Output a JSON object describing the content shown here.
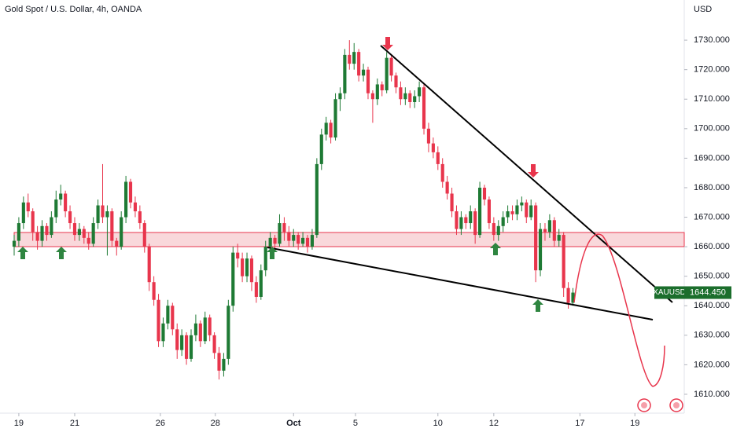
{
  "chart_data": {
    "type": "candlestick",
    "title": "Gold Spot / U.S. Dollar, 4h, OANDA",
    "y_axis_label": "USD",
    "up_color": "#1e7a34",
    "down_color": "#e8354c",
    "ylim": [
      1605.2,
      1743.6
    ],
    "yticks": [
      {
        "value": 1610,
        "label": "1610.000"
      },
      {
        "value": 1620,
        "label": "1620.000"
      },
      {
        "value": 1630,
        "label": "1630.000"
      },
      {
        "value": 1640,
        "label": "1640.000"
      },
      {
        "value": 1650,
        "label": "1650.000"
      },
      {
        "value": 1660,
        "label": "1660.000"
      },
      {
        "value": 1670,
        "label": "1670.000"
      },
      {
        "value": 1680,
        "label": "1680.000"
      },
      {
        "value": 1690,
        "label": "1690.000"
      },
      {
        "value": 1700,
        "label": "1700.000"
      },
      {
        "value": 1710,
        "label": "1710.000"
      },
      {
        "value": 1720,
        "label": "1720.000"
      },
      {
        "value": 1730,
        "label": "1730.000"
      }
    ],
    "xlim": [
      -3.04,
      143.9
    ],
    "xticks": [
      {
        "value": 1,
        "label": "19"
      },
      {
        "value": 13,
        "label": "21"
      },
      {
        "value": 31.4,
        "label": "26"
      },
      {
        "value": 43.2,
        "label": "28"
      },
      {
        "value": 60,
        "label": "Oct"
      },
      {
        "value": 73.3,
        "label": "5"
      },
      {
        "value": 91,
        "label": "10"
      },
      {
        "value": 103,
        "label": "12"
      },
      {
        "value": 121.5,
        "label": "17"
      },
      {
        "value": 133.3,
        "label": "19"
      }
    ],
    "price_label": {
      "name": "XAUUSD",
      "value": 1644.45,
      "label": "1644.450"
    },
    "candles": [
      [
        1660,
        1664,
        1657,
        1662
      ],
      [
        1662,
        1670,
        1660,
        1668
      ],
      [
        1668,
        1677,
        1666,
        1675
      ],
      [
        1675,
        1678,
        1670,
        1672
      ],
      [
        1672,
        1673,
        1662,
        1665
      ],
      [
        1665,
        1667,
        1659,
        1662
      ],
      [
        1662,
        1669,
        1660,
        1667
      ],
      [
        1667,
        1668,
        1662,
        1664
      ],
      [
        1664,
        1672,
        1663,
        1670
      ],
      [
        1670,
        1679,
        1668,
        1676
      ],
      [
        1676,
        1681,
        1674,
        1678
      ],
      [
        1678,
        1679,
        1670,
        1672
      ],
      [
        1672,
        1674,
        1666,
        1668
      ],
      [
        1668,
        1670,
        1662,
        1664
      ],
      [
        1664,
        1668,
        1662,
        1666
      ],
      [
        1666,
        1667,
        1661,
        1663
      ],
      [
        1663,
        1665,
        1659,
        1661
      ],
      [
        1661,
        1670,
        1660,
        1668
      ],
      [
        1668,
        1676,
        1666,
        1674
      ],
      [
        1674,
        1688,
        1668,
        1670
      ],
      [
        1670,
        1674,
        1657,
        1672
      ],
      [
        1672,
        1673,
        1660,
        1662
      ],
      [
        1662,
        1663,
        1657,
        1660
      ],
      [
        1660,
        1672,
        1659,
        1670
      ],
      [
        1670,
        1684,
        1668,
        1682
      ],
      [
        1682,
        1683,
        1673,
        1675
      ],
      [
        1675,
        1677,
        1670,
        1672
      ],
      [
        1672,
        1674,
        1666,
        1668
      ],
      [
        1668,
        1669,
        1658,
        1660
      ],
      [
        1660,
        1661,
        1645,
        1648
      ],
      [
        1648,
        1650,
        1640,
        1642
      ],
      [
        1642,
        1644,
        1626,
        1628
      ],
      [
        1628,
        1636,
        1626,
        1634
      ],
      [
        1634,
        1642,
        1632,
        1640
      ],
      [
        1640,
        1641,
        1630,
        1632
      ],
      [
        1632,
        1634,
        1622,
        1625
      ],
      [
        1625,
        1632,
        1623,
        1630
      ],
      [
        1630,
        1631,
        1620,
        1622
      ],
      [
        1622,
        1632,
        1621,
        1630
      ],
      [
        1630,
        1637,
        1628,
        1634
      ],
      [
        1634,
        1635,
        1626,
        1628
      ],
      [
        1628,
        1638,
        1627,
        1636
      ],
      [
        1636,
        1637,
        1628,
        1630
      ],
      [
        1630,
        1631,
        1622,
        1624
      ],
      [
        1624,
        1626,
        1615,
        1618
      ],
      [
        1618,
        1624,
        1616,
        1622
      ],
      [
        1622,
        1642,
        1620,
        1640
      ],
      [
        1640,
        1660,
        1638,
        1658
      ],
      [
        1658,
        1661,
        1653,
        1656
      ],
      [
        1656,
        1658,
        1648,
        1650
      ],
      [
        1650,
        1658,
        1648,
        1656
      ],
      [
        1656,
        1657,
        1645,
        1648
      ],
      [
        1648,
        1650,
        1641,
        1643
      ],
      [
        1643,
        1654,
        1642,
        1652
      ],
      [
        1652,
        1662,
        1650,
        1660
      ],
      [
        1660,
        1665,
        1658,
        1663
      ],
      [
        1663,
        1664,
        1659,
        1661
      ],
      [
        1661,
        1671,
        1660,
        1668
      ],
      [
        1668,
        1670,
        1662,
        1665
      ],
      [
        1665,
        1667,
        1660,
        1662
      ],
      [
        1662,
        1666,
        1660,
        1664
      ],
      [
        1664,
        1665,
        1659,
        1661
      ],
      [
        1661,
        1665,
        1660,
        1663
      ],
      [
        1663,
        1664,
        1658,
        1660
      ],
      [
        1660,
        1666,
        1659,
        1664
      ],
      [
        1664,
        1690,
        1663,
        1688
      ],
      [
        1688,
        1700,
        1686,
        1698
      ],
      [
        1698,
        1704,
        1696,
        1702
      ],
      [
        1702,
        1703,
        1695,
        1697
      ],
      [
        1697,
        1712,
        1696,
        1710
      ],
      [
        1710,
        1714,
        1706,
        1712
      ],
      [
        1712,
        1727,
        1710,
        1725
      ],
      [
        1725,
        1730,
        1720,
        1722
      ],
      [
        1722,
        1729,
        1720,
        1726
      ],
      [
        1726,
        1727,
        1716,
        1718
      ],
      [
        1718,
        1722,
        1716,
        1720
      ],
      [
        1720,
        1721,
        1710,
        1712
      ],
      [
        1712,
        1713,
        1702,
        1710
      ],
      [
        1710,
        1717,
        1708,
        1715
      ],
      [
        1715,
        1716,
        1711,
        1713
      ],
      [
        1713,
        1726,
        1712,
        1724
      ],
      [
        1724,
        1725,
        1716,
        1718
      ],
      [
        1718,
        1719,
        1712,
        1714
      ],
      [
        1714,
        1716,
        1708,
        1710
      ],
      [
        1710,
        1714,
        1708,
        1712
      ],
      [
        1712,
        1713,
        1707,
        1709
      ],
      [
        1709,
        1713,
        1707,
        1711
      ],
      [
        1711,
        1716,
        1709,
        1714
      ],
      [
        1714,
        1715,
        1698,
        1700
      ],
      [
        1700,
        1702,
        1692,
        1695
      ],
      [
        1695,
        1697,
        1690,
        1692
      ],
      [
        1692,
        1694,
        1686,
        1688
      ],
      [
        1688,
        1690,
        1680,
        1682
      ],
      [
        1682,
        1684,
        1676,
        1678
      ],
      [
        1678,
        1680,
        1670,
        1672
      ],
      [
        1672,
        1674,
        1664,
        1666
      ],
      [
        1666,
        1672,
        1664,
        1670
      ],
      [
        1670,
        1671,
        1666,
        1668
      ],
      [
        1668,
        1674,
        1666,
        1672
      ],
      [
        1672,
        1673,
        1661,
        1664
      ],
      [
        1664,
        1682,
        1663,
        1680
      ],
      [
        1680,
        1681,
        1674,
        1676
      ],
      [
        1676,
        1677,
        1666,
        1668
      ],
      [
        1668,
        1670,
        1662,
        1664
      ],
      [
        1664,
        1669,
        1662,
        1667
      ],
      [
        1667,
        1672,
        1665,
        1670
      ],
      [
        1670,
        1674,
        1668,
        1672
      ],
      [
        1672,
        1674,
        1669,
        1671
      ],
      [
        1671,
        1676,
        1669,
        1674
      ],
      [
        1674,
        1677,
        1672,
        1675
      ],
      [
        1675,
        1676,
        1668,
        1670
      ],
      [
        1670,
        1676,
        1669,
        1674
      ],
      [
        1674,
        1675,
        1648,
        1652
      ],
      [
        1652,
        1668,
        1650,
        1666
      ],
      [
        1666,
        1668,
        1662,
        1665
      ],
      [
        1665,
        1671,
        1663,
        1669
      ],
      [
        1669,
        1670,
        1660,
        1662
      ],
      [
        1662,
        1666,
        1660,
        1664
      ],
      [
        1664,
        1665,
        1643,
        1646
      ],
      [
        1646,
        1648,
        1639,
        1641
      ],
      [
        1641,
        1646,
        1640,
        1644.45
      ]
    ]
  }
}
